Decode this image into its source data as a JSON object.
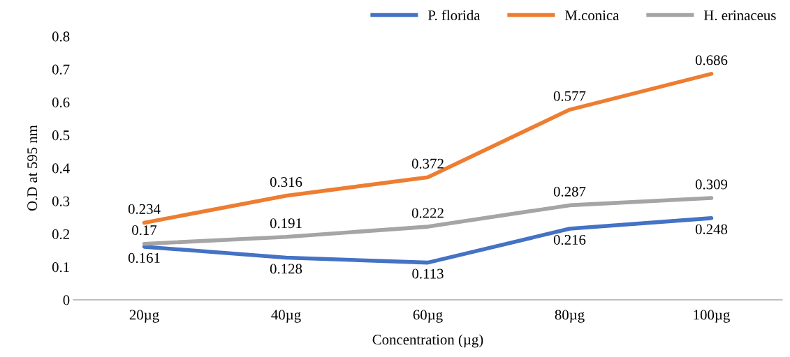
{
  "chart_data": {
    "type": "line",
    "xlabel": "Concentration (µg)",
    "ylabel": "O.D at 595 nm",
    "categories": [
      "20µg",
      "40µg",
      "60µg",
      "80µg",
      "100µg"
    ],
    "series": [
      {
        "name": "P. florida",
        "color": "#4472c4",
        "values": [
          0.161,
          0.128,
          0.113,
          0.216,
          0.248
        ]
      },
      {
        "name": "M.conica",
        "color": "#ed7d31",
        "values": [
          0.234,
          0.316,
          0.372,
          0.577,
          0.686
        ]
      },
      {
        "name": "H. erinaceus",
        "color": "#a5a5a5",
        "values": [
          0.17,
          0.191,
          0.222,
          0.287,
          0.309
        ]
      }
    ],
    "ylim": [
      0,
      0.8
    ],
    "yticks": [
      0,
      0.1,
      0.2,
      0.3,
      0.4,
      0.5,
      0.6,
      0.7,
      0.8
    ],
    "grid": false,
    "legend": "top right",
    "data_labels": true,
    "marker": "none",
    "line_style": "solid"
  }
}
